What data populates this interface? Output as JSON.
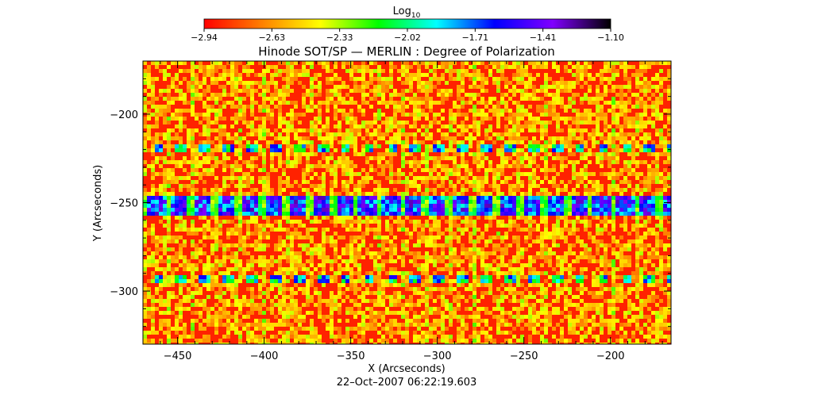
{
  "chart_data": {
    "type": "heatmap",
    "title": "Hinode SOT/SP — MERLIN : Degree of Polarization",
    "xlabel": "X (Arcseconds)",
    "ylabel": "Y (Arcseconds)",
    "timestamp": "22–Oct–2007 06:22:19.603",
    "xlim": [
      -470,
      -165
    ],
    "ylim": [
      -330,
      -170
    ],
    "x_ticks": [
      {
        "value": -450,
        "label": "−450"
      },
      {
        "value": -400,
        "label": "−400"
      },
      {
        "value": -350,
        "label": "−350"
      },
      {
        "value": -300,
        "label": "−300"
      },
      {
        "value": -250,
        "label": "−250"
      },
      {
        "value": -200,
        "label": "−200"
      }
    ],
    "y_ticks": [
      {
        "value": -200,
        "label": "−200"
      },
      {
        "value": -250,
        "label": "−250"
      },
      {
        "value": -300,
        "label": "−300"
      }
    ],
    "colorbar": {
      "title": "Log",
      "title_subscript": "10",
      "min": -2.94,
      "max": -1.1,
      "scale": "log10",
      "tick_labels": [
        "−2.94",
        "−2.63",
        "−2.33",
        "−2.02",
        "−1.71",
        "−1.41",
        "−1.10"
      ],
      "colormap": [
        "#ff0000",
        "#ff8000",
        "#ffff00",
        "#00ff00",
        "#00ffff",
        "#0000ff",
        "#8000ff",
        "#000000"
      ]
    },
    "grid": false,
    "features": [
      {
        "name": "strong polarization band",
        "y": -251,
        "x_range": [
          -470,
          -165
        ]
      },
      {
        "name": "moderate polarization band",
        "y": -218,
        "x_range": [
          -470,
          -165
        ]
      },
      {
        "name": "moderate polarization band",
        "y": -292,
        "x_range": [
          -470,
          -165
        ]
      }
    ]
  }
}
